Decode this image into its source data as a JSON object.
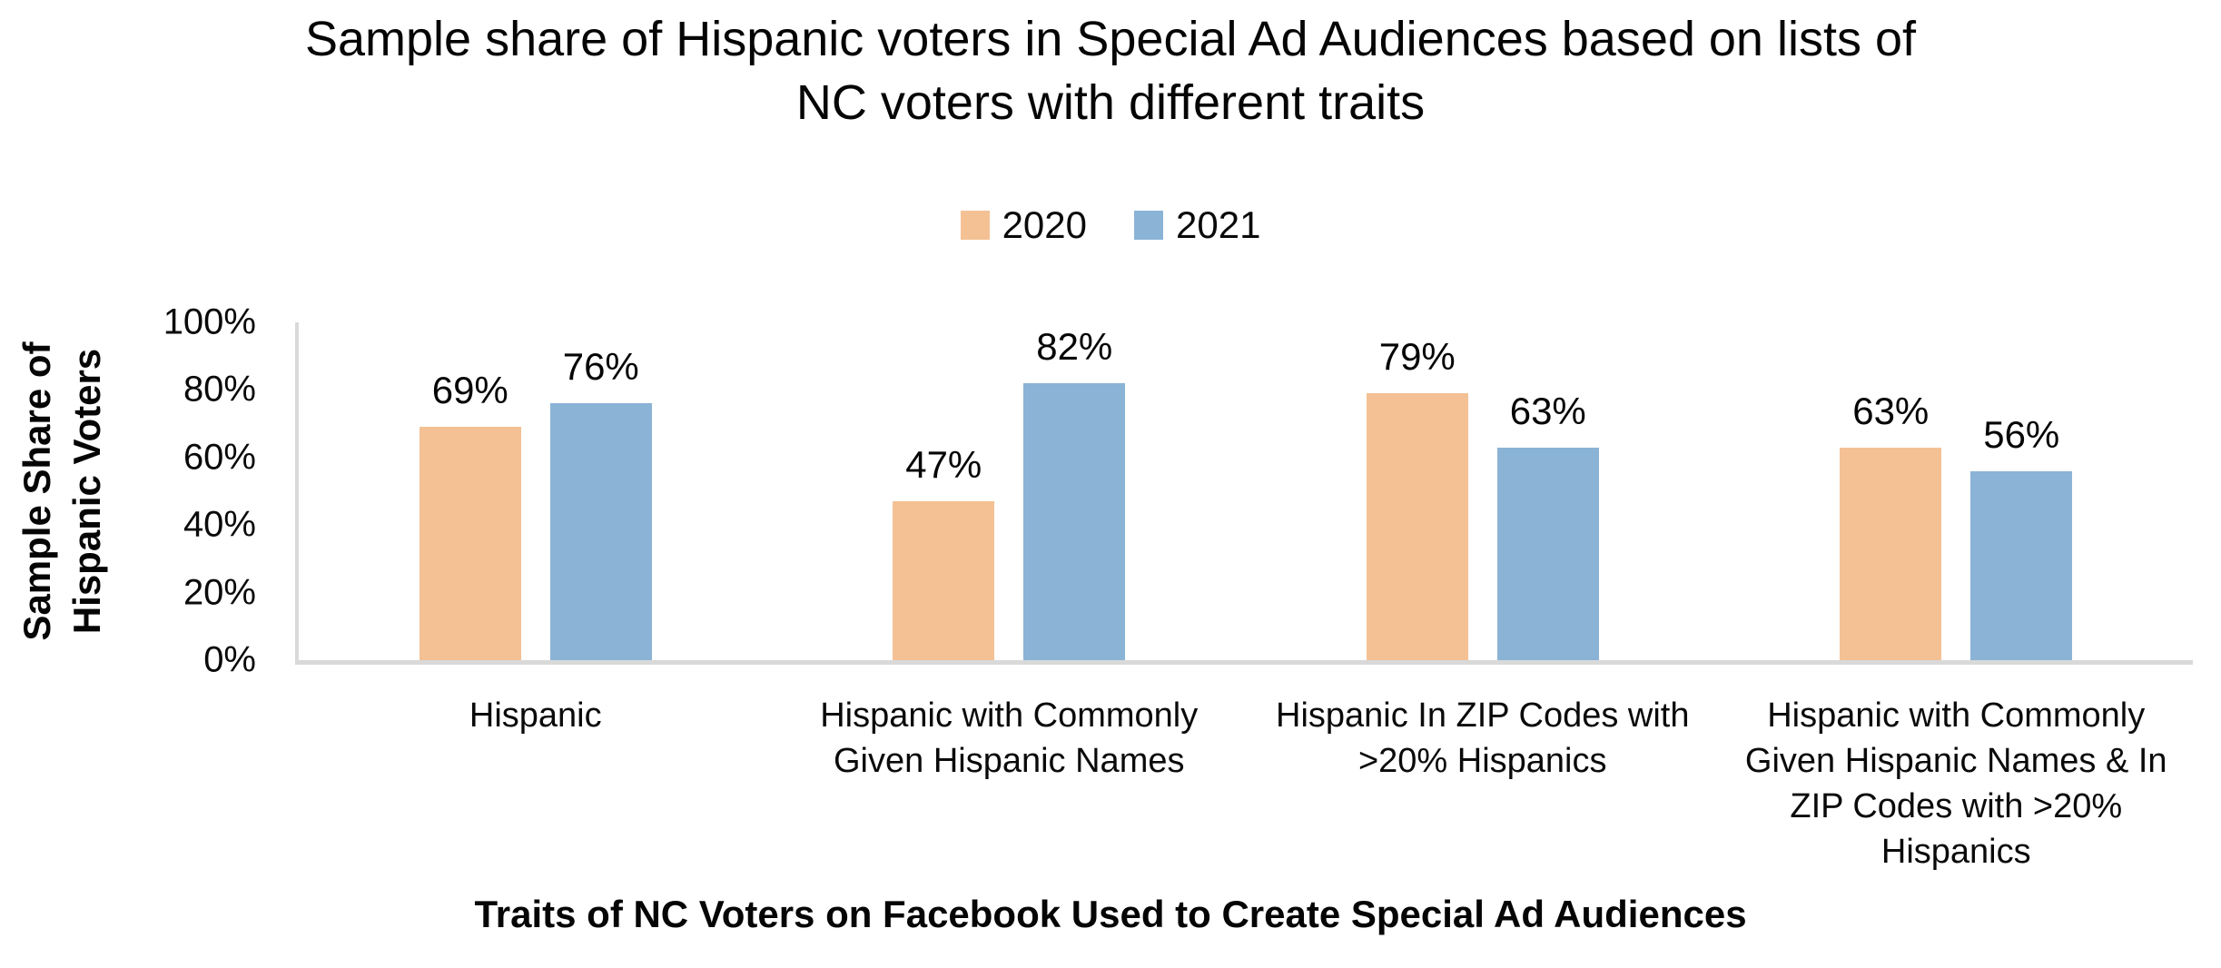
{
  "chart_data": {
    "type": "bar",
    "title": "Sample share of Hispanic voters in Special Ad Audiences based on lists of\nNC voters with different traits",
    "xlabel": "Traits of NC Voters on Facebook Used to Create Special Ad Audiences",
    "ylabel": "Sample Share of\nHispanic Voters",
    "categories": [
      "Hispanic",
      "Hispanic with Commonly Given Hispanic Names",
      "Hispanic In ZIP Codes with >20% Hispanics",
      "Hispanic with Commonly Given Hispanic Names & In ZIP Codes with >20% Hispanics"
    ],
    "series": [
      {
        "name": "2020",
        "color": "#F4C194",
        "values": [
          69,
          47,
          79,
          63
        ],
        "labels": [
          "69%",
          "47%",
          "79%",
          "63%"
        ]
      },
      {
        "name": "2021",
        "color": "#8BB3D6",
        "values": [
          76,
          82,
          63,
          56
        ],
        "labels": [
          "76%",
          "82%",
          "63%",
          "56%"
        ]
      }
    ],
    "yticks": [
      "100%",
      "80%",
      "60%",
      "40%",
      "20%",
      "0%"
    ],
    "ylim": [
      0,
      100
    ],
    "grid": false,
    "legend_position": "top-center",
    "axis_color": "#D9D9D9",
    "background_color": "#FFFFFF",
    "text_color": "#050505"
  }
}
